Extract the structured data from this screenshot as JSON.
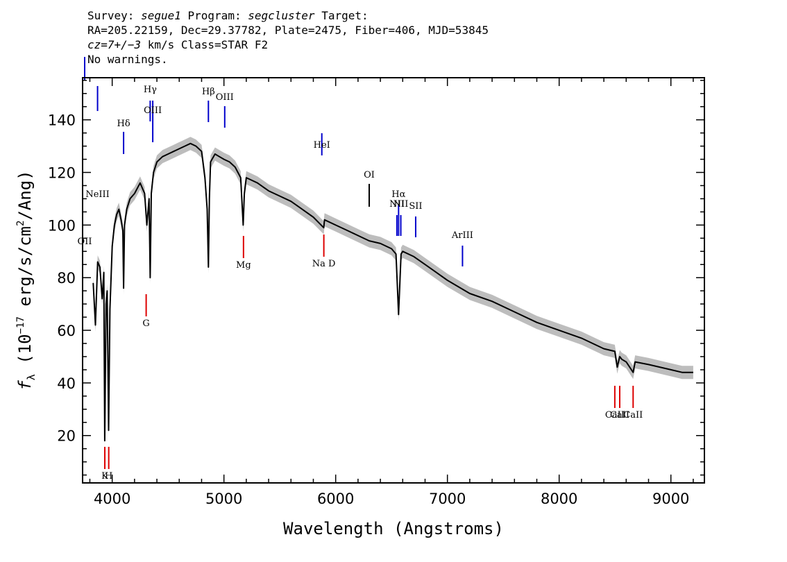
{
  "header": {
    "survey_label": "Survey:",
    "survey": "segue1",
    "program_label": "Program:",
    "program": "segcluster",
    "target_label": "Target:",
    "line2": "RA=205.22159, Dec=29.37782, Plate=2475, Fiber=406, MJD=53845",
    "line3a": "cz=7+/−3",
    "line3b": " km/s Class=STAR F2",
    "line4": "No warnings."
  },
  "colors": {
    "spectrum": "#000000",
    "error_band": "#bdbdbd",
    "emission": "#0000cc",
    "absorption": "#dd0000"
  },
  "chart_data": {
    "type": "line",
    "title": "",
    "xlabel": "Wavelength (Angstroms)",
    "ylabel_symbol": "f",
    "ylabel_sub": "λ",
    "ylabel_pre": " (10",
    "ylabel_exp1": "−17",
    "ylabel_mid": " erg/s/cm",
    "ylabel_exp2": "2",
    "ylabel_post": "/Ang)",
    "xlim": [
      3735,
      9300
    ],
    "ylim": [
      2,
      156
    ],
    "x_ticks": [
      4000,
      5000,
      6000,
      7000,
      8000,
      9000
    ],
    "y_ticks": [
      20,
      40,
      60,
      80,
      100,
      120,
      140
    ],
    "series": [
      {
        "x": [
          3830,
          3850,
          3870,
          3890,
          3910,
          3925,
          3933,
          3945,
          3955,
          3968,
          3980,
          4000,
          4020,
          4040,
          4060,
          4080,
          4095,
          4102,
          4110,
          4130,
          4160,
          4200,
          4250,
          4290,
          4310,
          4330,
          4340,
          4350,
          4370,
          4400,
          4450,
          4500,
          4550,
          4600,
          4650,
          4700,
          4750,
          4800,
          4830,
          4850,
          4861,
          4870,
          4880,
          4920,
          4960,
          5000,
          5050,
          5100,
          5150,
          5172,
          5183,
          5200,
          5250,
          5300,
          5400,
          5500,
          5600,
          5700,
          5800,
          5893,
          5900,
          6000,
          6100,
          6200,
          6300,
          6400,
          6500,
          6540,
          6563,
          6585,
          6600,
          6700,
          6800,
          6900,
          7000,
          7200,
          7400,
          7600,
          7800,
          8000,
          8200,
          8400,
          8498,
          8520,
          8542,
          8560,
          8600,
          8662,
          8680,
          8800,
          9000,
          9100,
          9200
        ],
        "flux": [
          78,
          62,
          86,
          84,
          72,
          82,
          18,
          70,
          75,
          22,
          68,
          92,
          100,
          104,
          106,
          102,
          98,
          76,
          100,
          106,
          110,
          112,
          116,
          112,
          100,
          110,
          80,
          112,
          120,
          124,
          126,
          127,
          128,
          129,
          130,
          131,
          130,
          128,
          118,
          106,
          84,
          110,
          124,
          127,
          126,
          125,
          124,
          122,
          118,
          100,
          112,
          118,
          117,
          116,
          113,
          111,
          109,
          106,
          103,
          99,
          102,
          100,
          98,
          96,
          94,
          93,
          91,
          89,
          66,
          89,
          90,
          88,
          85,
          82,
          79,
          74,
          71,
          67,
          63,
          60,
          57,
          53,
          52,
          46,
          50,
          49,
          48,
          44,
          48,
          47,
          45,
          44,
          44
        ]
      }
    ],
    "emission_lines": [
      {
        "label": "OII",
        "wavelength": 3727
      },
      {
        "label": "NeIII",
        "wavelength": 3869
      },
      {
        "label": "Hδ",
        "wavelength": 4102
      },
      {
        "label": "Hγ",
        "wavelength": 4340
      },
      {
        "label": "OIII",
        "wavelength": 4363
      },
      {
        "label": "Hβ",
        "wavelength": 4861
      },
      {
        "label": "OIII",
        "wavelength": 5007
      },
      {
        "label": "HeI",
        "wavelength": 5876
      },
      {
        "label": "OI",
        "wavelength": 6300
      },
      {
        "label": "NII",
        "wavelength": 6548
      },
      {
        "label": "Hα",
        "wavelength": 6563
      },
      {
        "label": "NII",
        "wavelength": 6583
      },
      {
        "label": "SII",
        "wavelength": 6716
      },
      {
        "label": "ArIII",
        "wavelength": 7135
      }
    ],
    "absorption_lines": [
      {
        "label": "K",
        "wavelength": 3934
      },
      {
        "label": "H",
        "wavelength": 3969
      },
      {
        "label": "G",
        "wavelength": 4304
      },
      {
        "label": "Mg",
        "wavelength": 5175
      },
      {
        "label": "Na D",
        "wavelength": 5894
      },
      {
        "label": "CaII",
        "wavelength": 8498
      },
      {
        "label": "CaII",
        "wavelength": 8542
      },
      {
        "label": "CaII",
        "wavelength": 8662
      }
    ]
  }
}
